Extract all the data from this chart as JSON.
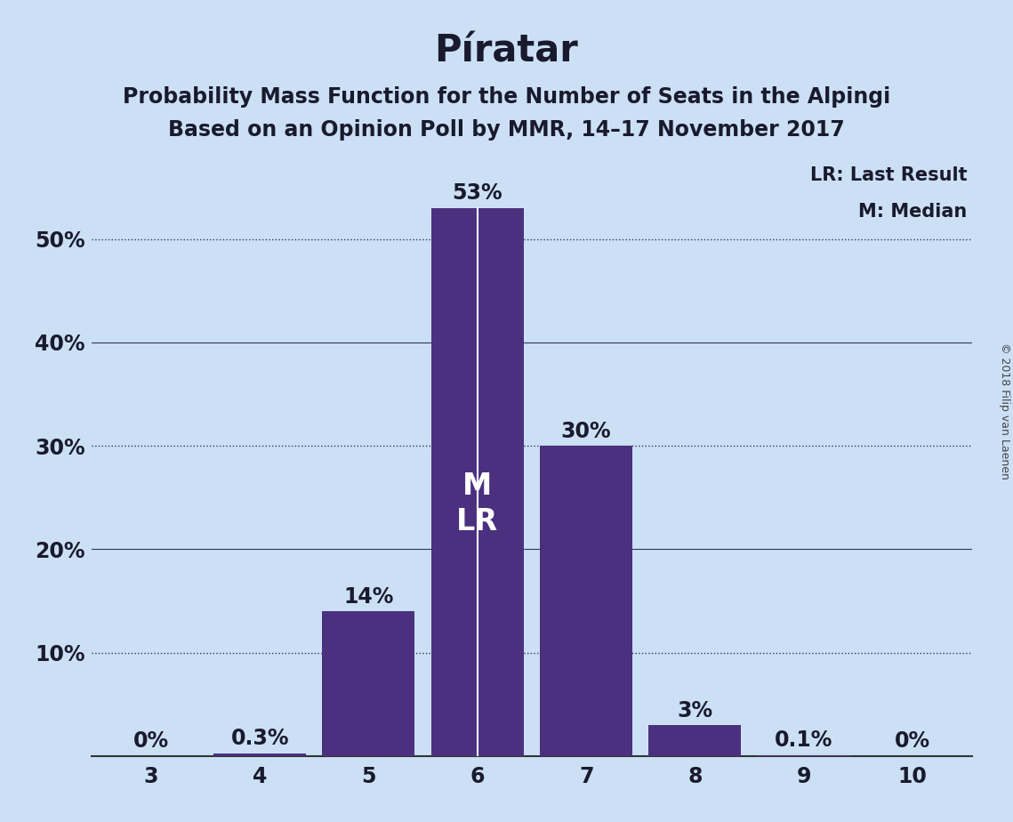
{
  "title": "Píratar",
  "subtitle1": "Probability Mass Function for the Number of Seats in the Alpingi",
  "subtitle2": "Based on an Opinion Poll by MMR, 14–17 November 2017",
  "copyright": "© 2018 Filip van Laenen",
  "categories": [
    3,
    4,
    5,
    6,
    7,
    8,
    9,
    10
  ],
  "values": [
    0.0,
    0.3,
    14.0,
    53.0,
    30.0,
    3.0,
    0.1,
    0.0
  ],
  "bar_color": "#4b3080",
  "background_color": "#cce0f5",
  "ylim": [
    0,
    58
  ],
  "grid_values_dotted": [
    10,
    30,
    50
  ],
  "grid_values_solid": [
    20,
    40
  ],
  "legend_lr": "LR: Last Result",
  "legend_m": "M: Median",
  "median_seat": 6,
  "last_result_seat": 6,
  "bar_labels": [
    "0%",
    "0.3%",
    "14%",
    "53%",
    "30%",
    "3%",
    "0.1%",
    "0%"
  ],
  "bar_label_color": "#1a1a2e",
  "ml_label_bar": 6,
  "title_fontsize": 30,
  "subtitle_fontsize": 17,
  "label_fontsize": 17,
  "tick_fontsize": 17,
  "legend_fontsize": 15,
  "copyright_fontsize": 9,
  "ytick_positions": [
    10,
    20,
    30,
    40,
    50
  ],
  "ytick_labels": [
    "10%",
    "20%",
    "30%",
    "40%",
    "50%"
  ]
}
